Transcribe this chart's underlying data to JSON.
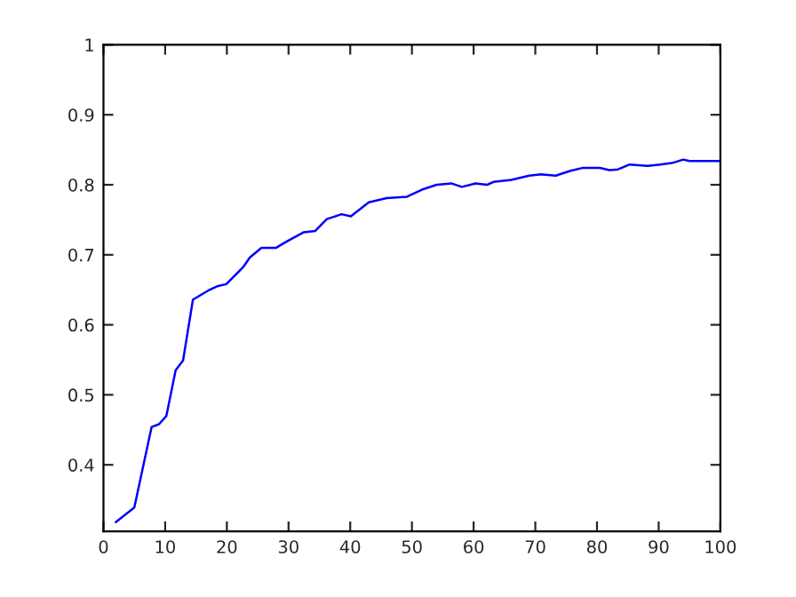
{
  "chart_data": {
    "type": "line",
    "xlim": [
      0,
      100
    ],
    "ylim": [
      0.305,
      1
    ],
    "xticks": [
      0,
      10,
      20,
      30,
      40,
      50,
      60,
      70,
      80,
      90,
      100
    ],
    "yticks": [
      0.4,
      0.5,
      0.6,
      0.7,
      0.8,
      0.9,
      1
    ],
    "grid": false,
    "legend": false,
    "marker": "none",
    "line_style": "solid",
    "series": [
      {
        "color": "#0000ff",
        "x": [
          2,
          5,
          7.8,
          9,
          10.2,
          11.7,
          12.9,
          14.5,
          17,
          18.4,
          19.9,
          21.8,
          22.7,
          23.7,
          25.6,
          28,
          29.5,
          32.4,
          34.3,
          36.2,
          38.6,
          40.1,
          43,
          45.9,
          49.2,
          51.6,
          54,
          56.4,
          58.1,
          60.3,
          62.2,
          63.2,
          66.1,
          69,
          70.9,
          73.3,
          75.7,
          77.6,
          80.5,
          82,
          83.4,
          85.3,
          88.2,
          90.2,
          92.1,
          94,
          95,
          100
        ],
        "values": [
          0.318,
          0.339,
          0.454,
          0.458,
          0.47,
          0.535,
          0.549,
          0.636,
          0.649,
          0.655,
          0.658,
          0.675,
          0.683,
          0.696,
          0.71,
          0.71,
          0.718,
          0.732,
          0.734,
          0.751,
          0.758,
          0.755,
          0.775,
          0.781,
          0.783,
          0.793,
          0.8,
          0.802,
          0.797,
          0.802,
          0.8,
          0.804,
          0.807,
          0.813,
          0.815,
          0.813,
          0.82,
          0.824,
          0.824,
          0.821,
          0.822,
          0.829,
          0.827,
          0.829,
          0.831,
          0.836,
          0.834,
          0.834
        ]
      }
    ]
  }
}
